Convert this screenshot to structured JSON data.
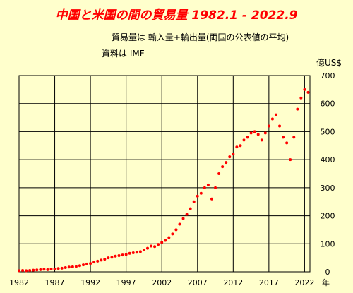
{
  "title": "中国と米国の間の貿易量 1982.1 - 2022.9",
  "notes": [
    "貿易量は 輸入量+輸出量(両国の公表値の平均)",
    "資料は IMF"
  ],
  "colors": {
    "title": "#ff0000",
    "points": "#ff0000",
    "background": "#ffffcc",
    "grid": "#000000"
  },
  "chart_data": {
    "type": "scatter",
    "ylabel": "億US$",
    "xunit": "年",
    "xlim": [
      1982.0,
      2022.75
    ],
    "ylim": [
      0,
      700
    ],
    "xticks": [
      "1982",
      "1987",
      "1992",
      "1997",
      "2002",
      "2007",
      "2012",
      "2017",
      "2022"
    ],
    "yticks": [
      "0",
      "100",
      "200",
      "300",
      "400",
      "500",
      "600",
      "700"
    ],
    "grid": true,
    "series": [
      {
        "x": [
          1982.0,
          1982.5,
          1983.0,
          1983.5,
          1984.0,
          1984.5,
          1985.0,
          1985.5,
          1986.0,
          1986.5,
          1987.0,
          1987.5,
          1988.0,
          1988.5,
          1989.0,
          1989.5,
          1990.0,
          1990.5,
          1991.0,
          1991.5,
          1992.0,
          1992.5,
          1993.0,
          1993.5,
          1994.0,
          1994.5,
          1995.0,
          1995.5,
          1996.0,
          1996.5,
          1997.0,
          1997.5,
          1998.0,
          1998.5,
          1999.0,
          1999.5,
          2000.0,
          2000.5,
          2001.0,
          2001.5,
          2002.0,
          2002.5,
          2003.0,
          2003.5,
          2004.0,
          2004.5,
          2005.0,
          2005.5,
          2006.0,
          2006.5,
          2007.0,
          2007.5,
          2008.0,
          2008.5,
          2009.0,
          2009.5,
          2010.0,
          2010.5,
          2011.0,
          2011.5,
          2012.0,
          2012.5,
          2013.0,
          2013.5,
          2014.0,
          2014.5,
          2015.0,
          2015.5,
          2016.0,
          2016.5,
          2017.0,
          2017.5,
          2018.0,
          2018.5,
          2019.0,
          2019.5,
          2020.0,
          2020.5,
          2021.0,
          2021.5,
          2022.0,
          2022.5
        ],
        "y": [
          4,
          5,
          4,
          5,
          6,
          7,
          8,
          9,
          8,
          10,
          10,
          12,
          13,
          15,
          17,
          18,
          19,
          22,
          25,
          28,
          30,
          35,
          38,
          42,
          45,
          50,
          52,
          56,
          58,
          60,
          62,
          66,
          68,
          70,
          72,
          78,
          84,
          92,
          90,
          98,
          105,
          112,
          122,
          135,
          150,
          170,
          190,
          205,
          225,
          250,
          270,
          280,
          300,
          310,
          260,
          300,
          350,
          375,
          390,
          410,
          420,
          445,
          450,
          470,
          480,
          495,
          500,
          490,
          470,
          495,
          520,
          545,
          560,
          520,
          480,
          460,
          400,
          480,
          580,
          620,
          650,
          640
        ]
      }
    ]
  }
}
